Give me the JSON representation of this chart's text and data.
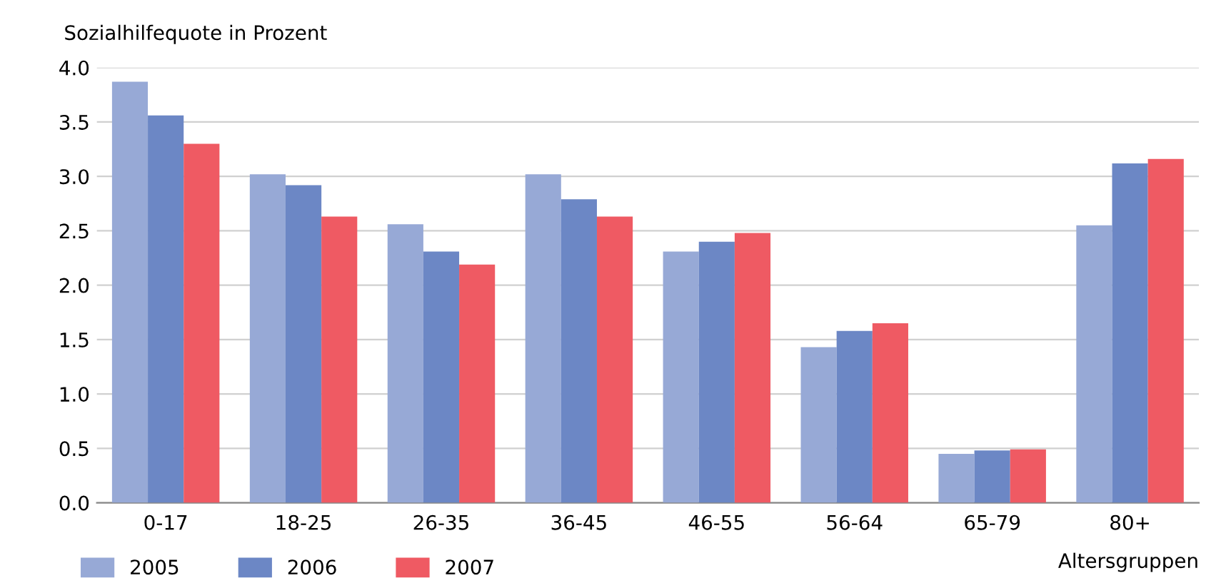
{
  "chart_data": {
    "type": "bar",
    "ylabel": "Sozialhilfequote in Prozent",
    "xlabel": "Altersgruppen",
    "categories": [
      "0-17",
      "18-25",
      "26-35",
      "36-45",
      "46-55",
      "56-64",
      "65-79",
      "80+"
    ],
    "series": [
      {
        "name": "2005",
        "color": "#97a9d6",
        "values": [
          3.87,
          3.02,
          2.56,
          3.02,
          2.31,
          1.43,
          0.45,
          2.55
        ]
      },
      {
        "name": "2006",
        "color": "#6c87c5",
        "values": [
          3.56,
          2.92,
          2.31,
          2.79,
          2.4,
          1.58,
          0.48,
          3.12
        ]
      },
      {
        "name": "2007",
        "color": "#ef5a63",
        "values": [
          3.3,
          2.63,
          2.19,
          2.63,
          2.48,
          1.65,
          0.49,
          3.16
        ]
      }
    ],
    "ylim": [
      0,
      4
    ],
    "yticks": [
      {
        "value": 0,
        "label": "0.0"
      },
      {
        "value": 0.5,
        "label": "0.5"
      },
      {
        "value": 1,
        "label": "1.0"
      },
      {
        "value": 1.5,
        "label": "1.5"
      },
      {
        "value": 2,
        "label": "2.0"
      },
      {
        "value": 2.5,
        "label": "2.5"
      },
      {
        "value": 3,
        "label": "3.0"
      },
      {
        "value": 3.5,
        "label": "3.5"
      },
      {
        "value": 4,
        "label": "4.0"
      }
    ],
    "grid": "y",
    "legend": "bottom left"
  }
}
